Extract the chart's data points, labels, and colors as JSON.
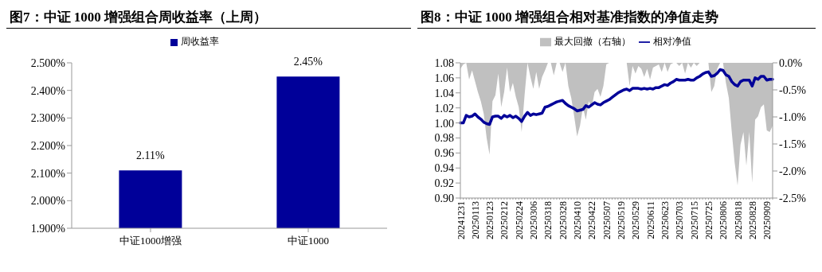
{
  "chart_data": [
    {
      "type": "bar",
      "title": "图7：中证 1000 增强组合周收益率（上周）",
      "categories": [
        "中证1000增强",
        "中证1000"
      ],
      "series": [
        {
          "name": "周收益率",
          "color": "#000099",
          "values": [
            2.11,
            2.45
          ],
          "value_labels": [
            "2.11%",
            "2.45%"
          ]
        }
      ],
      "ylim": [
        1.9,
        2.5
      ],
      "yticks": [
        {
          "value": 1.9,
          "label": "1.900%"
        },
        {
          "value": 2.0,
          "label": "2.000%"
        },
        {
          "value": 2.1,
          "label": "2.100%"
        },
        {
          "value": 2.2,
          "label": "2.200%"
        },
        {
          "value": 2.3,
          "label": "2.300%"
        },
        {
          "value": 2.4,
          "label": "2.400%"
        },
        {
          "value": 2.5,
          "label": "2.500%"
        }
      ],
      "legend": "top"
    },
    {
      "type": "line",
      "title": "图8：中证 1000 增强组合相对基准指数的净值走势",
      "categories": [
        "20241231",
        null,
        null,
        null,
        null,
        "20250113",
        null,
        null,
        null,
        null,
        "20250123",
        null,
        null,
        null,
        null,
        "20250212",
        null,
        null,
        null,
        null,
        "20250224",
        null,
        null,
        null,
        null,
        "20250306",
        null,
        null,
        null,
        null,
        "20250318",
        null,
        null,
        null,
        null,
        "20250328",
        null,
        null,
        null,
        null,
        "20250410",
        null,
        null,
        null,
        null,
        "20250422",
        null,
        null,
        null,
        null,
        "20250507",
        null,
        null,
        null,
        null,
        "20250519",
        null,
        null,
        null,
        null,
        "20250529",
        null,
        null,
        null,
        null,
        "20250611",
        null,
        null,
        null,
        null,
        "20250623",
        null,
        null,
        null,
        null,
        "20250703",
        null,
        null,
        null,
        null,
        "20250715",
        null,
        null,
        null,
        null,
        "20250725",
        null,
        null,
        null,
        null,
        "20250806",
        null,
        null,
        null,
        null,
        "20250818",
        null,
        null,
        null,
        null,
        "20250828",
        null,
        null,
        null,
        null,
        "20250909",
        null,
        null
      ],
      "series": [
        {
          "name": "最大回撤（右轴）",
          "type": "area",
          "axis": "y2",
          "color": "#c0c0c0",
          "values": [
            -0.11,
            -0.03,
            0,
            -0.31,
            -0.14,
            -0.34,
            -0.54,
            -0.71,
            -0.94,
            -1.39,
            -1.7,
            -0.71,
            -0.6,
            -0.2,
            -0.82,
            -0.54,
            -0.09,
            -0.54,
            -0.37,
            -0.63,
            -0.82,
            -1.28,
            -0.6,
            0,
            -0.26,
            -0.48,
            -0.17,
            -0.48,
            -0.26,
            -0.14,
            0,
            0,
            -0.23,
            0,
            0,
            -0.17,
            0,
            -0.43,
            -0.65,
            -0.99,
            -1.36,
            -1.16,
            -0.82,
            -1.05,
            -0.71,
            -0.82,
            -0.54,
            -0.48,
            -0.63,
            -0.43,
            -0.03,
            0,
            0,
            0,
            0,
            0,
            0,
            0,
            -0.43,
            -0.06,
            -0.2,
            -0.06,
            -0.11,
            -0.26,
            -0.11,
            -0.31,
            -0.09,
            -0.06,
            -0.03,
            -0.17,
            0,
            -0.17,
            -0.03,
            0,
            0,
            -0.06,
            0,
            -0.2,
            0,
            -0.09,
            0,
            -0.06,
            0,
            0,
            0,
            0,
            -0.54,
            -0.43,
            -0.11,
            0,
            0,
            -0.37,
            -0.65,
            -1.28,
            -1.85,
            -2.27,
            -1.51,
            -1.28,
            -1.9,
            -1.28,
            -2.22,
            -1.05,
            -0.99,
            -0.82,
            -0.77,
            -1.25,
            -1.28,
            -1.16
          ]
        },
        {
          "name": "相对净值",
          "type": "line",
          "color": "#000099",
          "values": [
            1.0,
            1.0,
            1.01,
            1.008,
            1.009,
            1.012,
            1.008,
            1.005,
            1.001,
            0.999,
            0.998,
            1.008,
            1.009,
            1.009,
            1.006,
            1.01,
            1.008,
            1.01,
            1.007,
            1.009,
            1.006,
            1.002,
            1.009,
            1.014,
            1.01,
            1.012,
            1.011,
            1.012,
            1.013,
            1.021,
            1.022,
            1.024,
            1.026,
            1.028,
            1.029,
            1.03,
            1.026,
            1.023,
            1.021,
            1.019,
            1.016,
            1.017,
            1.018,
            1.023,
            1.021,
            1.024,
            1.027,
            1.025,
            1.024,
            1.027,
            1.029,
            1.031,
            1.034,
            1.037,
            1.04,
            1.042,
            1.044,
            1.045,
            1.043,
            1.046,
            1.046,
            1.046,
            1.045,
            1.046,
            1.045,
            1.046,
            1.045,
            1.047,
            1.047,
            1.049,
            1.051,
            1.05,
            1.053,
            1.055,
            1.058,
            1.057,
            1.057,
            1.057,
            1.058,
            1.057,
            1.057,
            1.06,
            1.062,
            1.065,
            1.067,
            1.068,
            1.062,
            1.063,
            1.066,
            1.071,
            1.07,
            1.064,
            1.062,
            1.055,
            1.051,
            1.049,
            1.055,
            1.057,
            1.057,
            1.057,
            1.049,
            1.06,
            1.058,
            1.062,
            1.062,
            1.057,
            1.058,
            1.058
          ]
        }
      ],
      "ylim": [
        0.9,
        1.08
      ],
      "yticks": [
        {
          "value": 0.9,
          "label": "0.90"
        },
        {
          "value": 0.92,
          "label": "0.92"
        },
        {
          "value": 0.94,
          "label": "0.94"
        },
        {
          "value": 0.96,
          "label": "0.96"
        },
        {
          "value": 0.98,
          "label": "0.98"
        },
        {
          "value": 1.0,
          "label": "1.00"
        },
        {
          "value": 1.02,
          "label": "1.02"
        },
        {
          "value": 1.04,
          "label": "1.04"
        },
        {
          "value": 1.06,
          "label": "1.06"
        },
        {
          "value": 1.08,
          "label": "1.08"
        }
      ],
      "y2lim": [
        -2.5,
        0
      ],
      "y2ticks": [
        {
          "value": -2.5,
          "label": "-2.5%"
        },
        {
          "value": -2.0,
          "label": "-2.0%"
        },
        {
          "value": -1.5,
          "label": "-1.5%"
        },
        {
          "value": -1.0,
          "label": "-1.0%"
        },
        {
          "value": -0.5,
          "label": "-0.5%"
        },
        {
          "value": 0,
          "label": "0.0%"
        }
      ],
      "legend": "top"
    }
  ]
}
